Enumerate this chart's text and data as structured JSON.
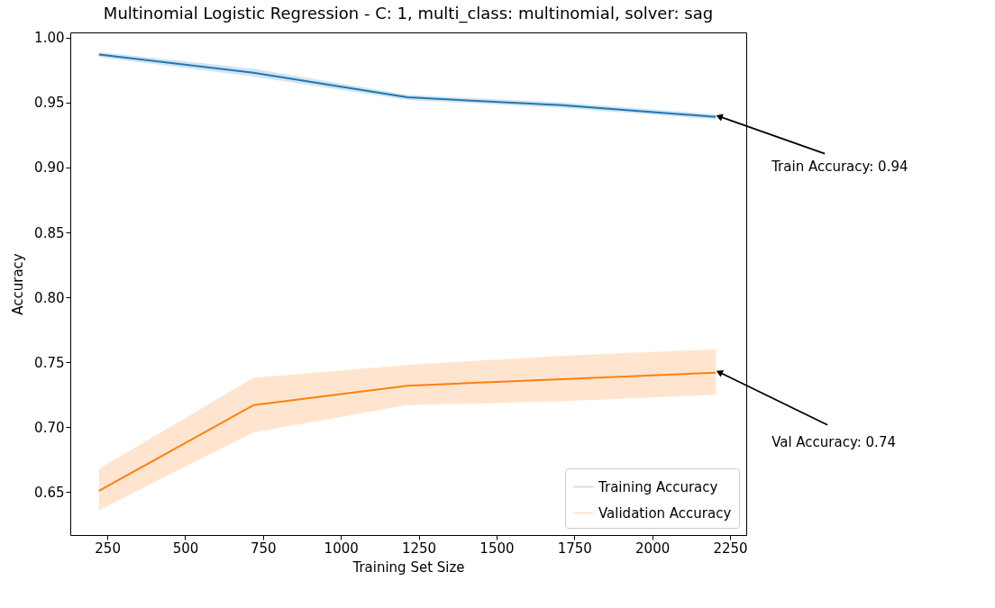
{
  "chart_data": {
    "type": "line",
    "title": "Multinomial Logistic Regression - C: 1, multi_class: multinomial, solver: sag",
    "xlabel": "Training Set Size",
    "ylabel": "Accuracy",
    "x": [
      223,
      719,
      1214,
      1709,
      2204
    ],
    "series": [
      {
        "name": "Training Accuracy",
        "color": "#1f77b4",
        "values": [
          0.987,
          0.973,
          0.954,
          0.948,
          0.939
        ],
        "lower": [
          0.985,
          0.97,
          0.952,
          0.946,
          0.937
        ],
        "upper": [
          0.989,
          0.976,
          0.956,
          0.95,
          0.941
        ]
      },
      {
        "name": "Validation Accuracy",
        "color": "#ff7f0e",
        "values": [
          0.651,
          0.717,
          0.732,
          0.737,
          0.742
        ],
        "lower": [
          0.636,
          0.696,
          0.717,
          0.72,
          0.725
        ],
        "upper": [
          0.668,
          0.738,
          0.748,
          0.755,
          0.76
        ]
      }
    ],
    "xlim": [
      131,
      2302
    ],
    "ylim": [
      0.617,
      1.004
    ],
    "xticks": [
      250,
      500,
      750,
      1000,
      1250,
      1500,
      1750,
      2000,
      2250
    ],
    "yticks": [
      {
        "value": 0.65,
        "label": "0.65"
      },
      {
        "value": 0.7,
        "label": "0.70"
      },
      {
        "value": 0.75,
        "label": "0.75"
      },
      {
        "value": 0.8,
        "label": "0.80"
      },
      {
        "value": 0.85,
        "label": "0.85"
      },
      {
        "value": 0.9,
        "label": "0.90"
      },
      {
        "value": 0.95,
        "label": "0.95"
      },
      {
        "value": 1.0,
        "label": "1.00"
      }
    ],
    "annotations": [
      {
        "text": "Train Accuracy: 0.94",
        "x": 2204,
        "y": 0.939
      },
      {
        "text": "Val Accuracy: 0.74",
        "x": 2204,
        "y": 0.742
      }
    ],
    "grid": false,
    "legend": "bottom right",
    "marker": "none"
  }
}
